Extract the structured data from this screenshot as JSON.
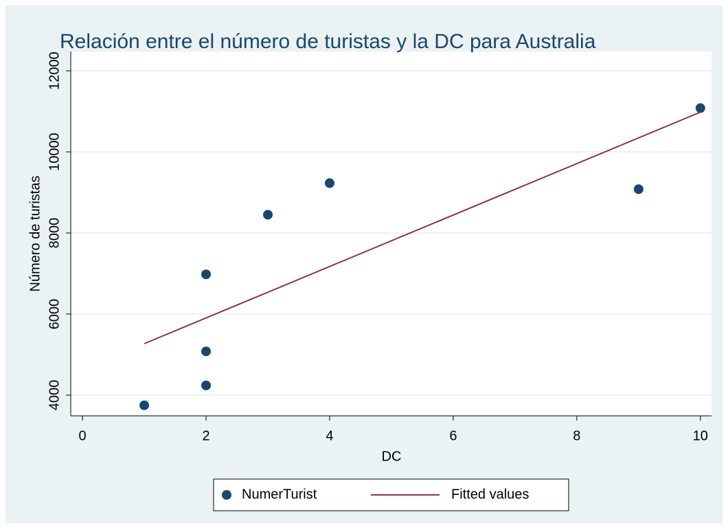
{
  "chart_data": {
    "type": "scatter",
    "title": "Relación entre el número de turistas y la DC para Australia",
    "xlabel": "DC",
    "ylabel": "Número de turistas",
    "xlim": [
      -0.19,
      10.18
    ],
    "ylim": [
      3490,
      12475
    ],
    "xticks": [
      0,
      2,
      4,
      6,
      8,
      10
    ],
    "yticks": [
      4000,
      6000,
      8000,
      10000,
      12000
    ],
    "grid": true,
    "legend": "bottom",
    "series": [
      {
        "name": "NumerTurist",
        "type": "scatter",
        "color": "#1a476f",
        "x": [
          1,
          2,
          2,
          2,
          3,
          4,
          9,
          10
        ],
        "values": [
          3750,
          4240,
          5080,
          6980,
          8450,
          9230,
          9080,
          11080
        ]
      },
      {
        "name": "Fitted values",
        "type": "line",
        "color": "#90353b",
        "x": [
          1,
          10
        ],
        "values": [
          5270,
          10980
        ]
      }
    ]
  }
}
